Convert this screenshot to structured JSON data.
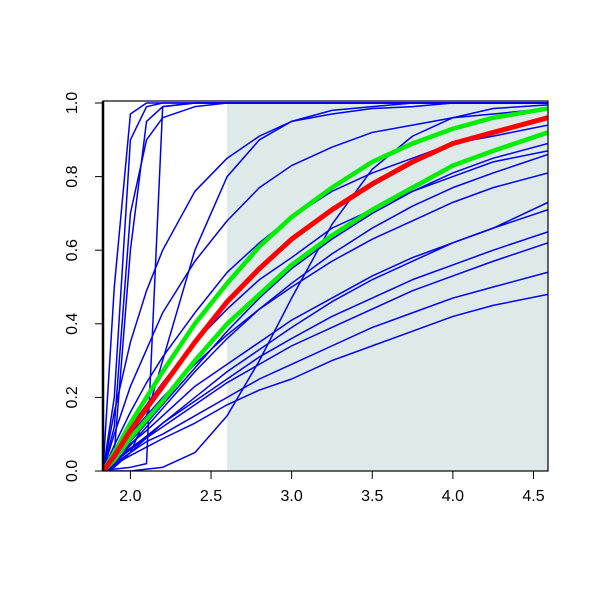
{
  "chart_data": {
    "type": "line",
    "x": [
      1.83,
      1.9,
      2.0,
      2.1,
      2.2,
      2.4,
      2.6,
      2.8,
      3.0,
      3.25,
      3.5,
      3.75,
      4.0,
      4.25,
      4.59
    ],
    "xlim": [
      1.83,
      4.59
    ],
    "ylim": [
      0,
      1
    ],
    "xticks": [
      {
        "value": 2.0,
        "label": "2.0"
      },
      2.5,
      {
        "value": 3.0,
        "label": "3.0"
      },
      3.5,
      {
        "value": 4.0,
        "label": "4.0"
      },
      4.5
    ],
    "yticks": [
      {
        "value": 0,
        "label": "0.0"
      },
      0.2,
      0.4,
      0.6,
      0.8,
      {
        "value": 1,
        "label": "1.0"
      }
    ],
    "shaded_region": {
      "x": [
        2.6,
        4.59
      ],
      "color": "#deeaea"
    },
    "series": [
      {
        "color": "#0000ee",
        "width": 1.5,
        "values": [
          0,
          0.017,
          0.042,
          0.065,
          0.088,
          0.13,
          0.18,
          0.22,
          0.25,
          0.3,
          0.34,
          0.38,
          0.42,
          0.45,
          0.48
        ]
      },
      {
        "color": "#0000ee",
        "width": 1.5,
        "values": [
          0,
          0.02,
          0.05,
          0.08,
          0.1,
          0.15,
          0.2,
          0.25,
          0.29,
          0.34,
          0.39,
          0.43,
          0.47,
          0.5,
          0.54
        ]
      },
      {
        "color": "#0000ee",
        "width": 1.5,
        "values": [
          0,
          0.024,
          0.058,
          0.09,
          0.12,
          0.18,
          0.24,
          0.29,
          0.34,
          0.39,
          0.44,
          0.49,
          0.53,
          0.57,
          0.62
        ]
      },
      {
        "color": "#0000ee",
        "width": 1.5,
        "values": [
          0,
          0.026,
          0.062,
          0.095,
          0.13,
          0.19,
          0.25,
          0.31,
          0.36,
          0.42,
          0.47,
          0.52,
          0.56,
          0.6,
          0.65
        ]
      },
      {
        "color": "#0000ee",
        "width": 1.5,
        "values": [
          0,
          0.031,
          0.074,
          0.11,
          0.15,
          0.23,
          0.29,
          0.35,
          0.41,
          0.47,
          0.53,
          0.58,
          0.62,
          0.66,
          0.71
        ]
      },
      {
        "color": "#0000ee",
        "width": 1.5,
        "values": [
          0,
          0.015,
          0.05,
          0.09,
          0.13,
          0.2,
          0.27,
          0.33,
          0.39,
          0.46,
          0.52,
          0.57,
          0.62,
          0.66,
          0.73
        ]
      },
      {
        "color": "#0000ee",
        "width": 1.5,
        "values": [
          0,
          0.04,
          0.1,
          0.15,
          0.2,
          0.29,
          0.37,
          0.44,
          0.5,
          0.57,
          0.63,
          0.68,
          0.73,
          0.77,
          0.81
        ]
      },
      {
        "color": "#0000ee",
        "width": 1.5,
        "values": [
          0,
          0.02,
          0.07,
          0.12,
          0.17,
          0.27,
          0.36,
          0.44,
          0.51,
          0.59,
          0.66,
          0.72,
          0.77,
          0.81,
          0.86
        ]
      },
      {
        "color": "#0000ee",
        "width": 1.5,
        "values": [
          0,
          0.05,
          0.12,
          0.18,
          0.24,
          0.35,
          0.44,
          0.52,
          0.58,
          0.66,
          0.71,
          0.76,
          0.8,
          0.84,
          0.87
        ]
      },
      {
        "color": "#0000ee",
        "width": 1.5,
        "values": [
          0,
          0.03,
          0.08,
          0.13,
          0.18,
          0.28,
          0.38,
          0.47,
          0.55,
          0.63,
          0.7,
          0.76,
          0.81,
          0.85,
          0.89
        ]
      },
      {
        "color": "#0000ee",
        "width": 1.5,
        "values": [
          0,
          0.07,
          0.16,
          0.24,
          0.31,
          0.43,
          0.54,
          0.62,
          0.69,
          0.76,
          0.81,
          0.85,
          0.89,
          0.91,
          0.94
        ]
      },
      {
        "color": "#0000ee",
        "width": 1.5,
        "values": [
          0,
          0.1,
          0.23,
          0.33,
          0.43,
          0.57,
          0.68,
          0.77,
          0.83,
          0.88,
          0.92,
          0.94,
          0.96,
          0.97,
          0.985
        ]
      },
      {
        "color": "#0000ee",
        "width": 1.5,
        "values": [
          0,
          0.16,
          0.35,
          0.49,
          0.6,
          0.76,
          0.85,
          0.91,
          0.95,
          0.97,
          0.985,
          0.99,
          1,
          1,
          1
        ]
      },
      {
        "color": "#0000ee",
        "width": 1.5,
        "values": [
          0,
          0.01,
          0.05,
          0.15,
          0.3,
          0.6,
          0.8,
          0.9,
          0.95,
          0.98,
          0.99,
          1,
          1,
          1,
          1
        ]
      },
      {
        "color": "#0000ee",
        "width": 1.5,
        "values": [
          0,
          0,
          0,
          0.005,
          0.01,
          0.05,
          0.15,
          0.3,
          0.47,
          0.67,
          0.82,
          0.91,
          0.96,
          0.985,
          0.995
        ]
      },
      {
        "color": "#0000ee",
        "width": 1.5,
        "values": [
          0,
          0.005,
          0.01,
          0.02,
          0.99,
          1,
          1,
          1,
          1,
          1,
          1,
          1,
          1,
          1,
          1
        ]
      },
      {
        "color": "#0000ee",
        "width": 1.5,
        "values": [
          0,
          0.05,
          0.6,
          0.95,
          0.99,
          1,
          1,
          1,
          1,
          1,
          1,
          1,
          1,
          1,
          1
        ]
      },
      {
        "color": "#0000ee",
        "width": 1.5,
        "values": [
          0,
          0.2,
          0.9,
          0.99,
          1,
          1,
          1,
          1,
          1,
          1,
          1,
          1,
          1,
          1,
          1
        ]
      },
      {
        "color": "#0000ee",
        "width": 1.5,
        "values": [
          0,
          0.5,
          0.97,
          1,
          1,
          1,
          1,
          1,
          1,
          1,
          1,
          1,
          1,
          1,
          1
        ]
      },
      {
        "color": "#0000ee",
        "width": 1.5,
        "values": [
          0,
          0.12,
          0.7,
          0.9,
          0.96,
          0.99,
          1,
          1,
          1,
          1,
          1,
          1,
          1,
          1,
          1
        ]
      },
      {
        "color": "#00ee00",
        "width": 4.5,
        "values": [
          0,
          0.05,
          0.13,
          0.2,
          0.27,
          0.4,
          0.51,
          0.61,
          0.69,
          0.77,
          0.84,
          0.89,
          0.93,
          0.96,
          0.985
        ]
      },
      {
        "color": "#00ee00",
        "width": 4.5,
        "values": [
          0,
          0.03,
          0.09,
          0.14,
          0.19,
          0.3,
          0.4,
          0.48,
          0.56,
          0.64,
          0.71,
          0.77,
          0.83,
          0.87,
          0.92
        ]
      },
      {
        "color": "#ff0000",
        "width": 5,
        "values": [
          0,
          0.04,
          0.11,
          0.17,
          0.23,
          0.35,
          0.46,
          0.55,
          0.63,
          0.71,
          0.78,
          0.84,
          0.89,
          0.92,
          0.96
        ]
      }
    ]
  }
}
